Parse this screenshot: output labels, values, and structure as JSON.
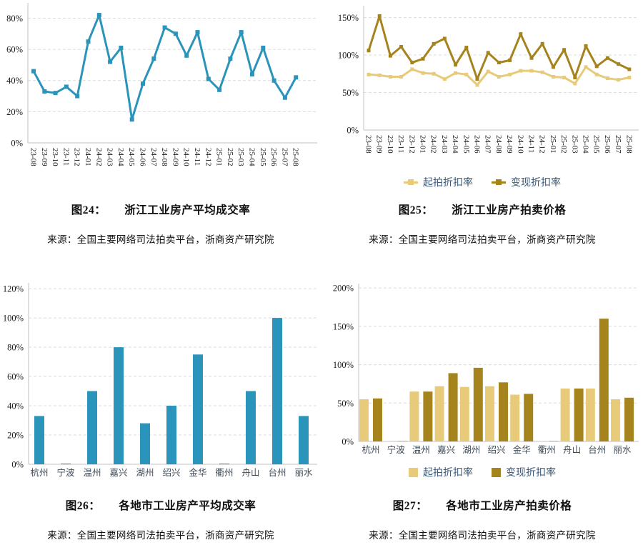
{
  "chart_data": [
    {
      "id": "fig24",
      "type": "line",
      "caption_label": "图24：",
      "caption_title": "浙江工业房产平均成交率",
      "source": "来源：全国主要网络司法拍卖平台，浙商资产研究院",
      "x_labels": [
        "23-08",
        "23-09",
        "23-10",
        "23-11",
        "23-12",
        "24-01",
        "24-02",
        "24-03",
        "24-04",
        "24-05",
        "24-06",
        "24-07",
        "24-08",
        "24-09",
        "24-10",
        "24-11",
        "24-12",
        "25-01",
        "25-02",
        "25-03",
        "25-04",
        "25-05",
        "25-06",
        "25-07",
        "25-08"
      ],
      "y_ticks": [
        "0%",
        "20%",
        "40%",
        "60%",
        "80%"
      ],
      "y_tick_values": [
        0,
        20,
        40,
        60,
        80
      ],
      "ylim": [
        0,
        88
      ],
      "grid": true,
      "legend_position": "none",
      "series": [
        {
          "name": "平均成交率",
          "color": "#2A94BA",
          "values": [
            46,
            33,
            32,
            36,
            30,
            65,
            82,
            52,
            61,
            15,
            38,
            54,
            74,
            70,
            56,
            71,
            41,
            34,
            54,
            71,
            44,
            61,
            40,
            29,
            42
          ]
        }
      ]
    },
    {
      "id": "fig25",
      "type": "line",
      "caption_label": "图25：",
      "caption_title": "浙江工业房产拍卖价格",
      "source": "来源：全国主要网络司法拍卖平台，浙商资产研究院",
      "x_labels": [
        "23-08",
        "23-09",
        "23-10",
        "23-11",
        "23-12",
        "24-01",
        "24-02",
        "24-03",
        "24-04",
        "24-05",
        "24-06",
        "24-07",
        "24-08",
        "24-09",
        "24-10",
        "24-11",
        "24-12",
        "25-01",
        "25-02",
        "25-03",
        "25-04",
        "25-05",
        "25-06",
        "25-07",
        "25-08"
      ],
      "y_ticks": [
        "0%",
        "50%",
        "100%",
        "150%"
      ],
      "y_tick_values": [
        0,
        50,
        100,
        150
      ],
      "ylim": [
        0,
        162
      ],
      "grid": true,
      "legend_position": "bottom",
      "series": [
        {
          "name": "起拍折扣率",
          "color": "#E7CB7A",
          "values": [
            74,
            73,
            71,
            71,
            81,
            76,
            75,
            68,
            76,
            74,
            60,
            78,
            71,
            74,
            79,
            79,
            77,
            71,
            70,
            62,
            84,
            74,
            69,
            67,
            70
          ]
        },
        {
          "name": "变现折扣率",
          "color": "#A5831D",
          "values": [
            106,
            152,
            99,
            111,
            90,
            95,
            115,
            122,
            87,
            110,
            68,
            103,
            90,
            93,
            128,
            96,
            115,
            84,
            107,
            70,
            112,
            85,
            96,
            88,
            81
          ]
        }
      ]
    },
    {
      "id": "fig26",
      "type": "bar",
      "caption_label": "图26：",
      "caption_title": "各地市工业房产平均成交率",
      "source": "来源：全国主要网络司法拍卖平台，浙商资产研究院",
      "x_labels": [
        "杭州",
        "宁波",
        "温州",
        "嘉兴",
        "湖州",
        "绍兴",
        "金华",
        "衢州",
        "舟山",
        "台州",
        "丽水"
      ],
      "y_ticks": [
        "0%",
        "20%",
        "40%",
        "60%",
        "80%",
        "100%",
        "120%"
      ],
      "y_tick_values": [
        0,
        20,
        40,
        60,
        80,
        100,
        120
      ],
      "ylim": [
        0,
        122
      ],
      "grid": true,
      "legend_position": "none",
      "series": [
        {
          "name": "平均成交率",
          "color": "#2A94BA",
          "values": [
            33,
            0.5,
            50,
            80,
            28,
            40,
            75,
            0.5,
            50,
            100,
            33
          ]
        }
      ]
    },
    {
      "id": "fig27",
      "type": "bar",
      "caption_label": "图27：",
      "caption_title": "各地市工业房产拍卖价格",
      "source": "来源：全国主要网络司法拍卖平台，浙商资产研究院",
      "x_labels": [
        "杭州",
        "宁波",
        "温州",
        "嘉兴",
        "湖州",
        "绍兴",
        "金华",
        "衢州",
        "舟山",
        "台州",
        "丽水"
      ],
      "y_ticks": [
        "0%",
        "50%",
        "100%",
        "150%",
        "200%"
      ],
      "y_tick_values": [
        0,
        50,
        100,
        150,
        200
      ],
      "ylim": [
        0,
        202
      ],
      "grid": true,
      "legend_position": "bottom",
      "series": [
        {
          "name": "起拍折扣率",
          "color": "#E7CB7A",
          "values": [
            55,
            0.5,
            65,
            72,
            71,
            72,
            61,
            0.5,
            69,
            69,
            55
          ]
        },
        {
          "name": "变现折扣率",
          "color": "#A5831D",
          "values": [
            56,
            0.5,
            65,
            89,
            96,
            77,
            62,
            0.5,
            69,
            160,
            57
          ]
        }
      ]
    }
  ]
}
